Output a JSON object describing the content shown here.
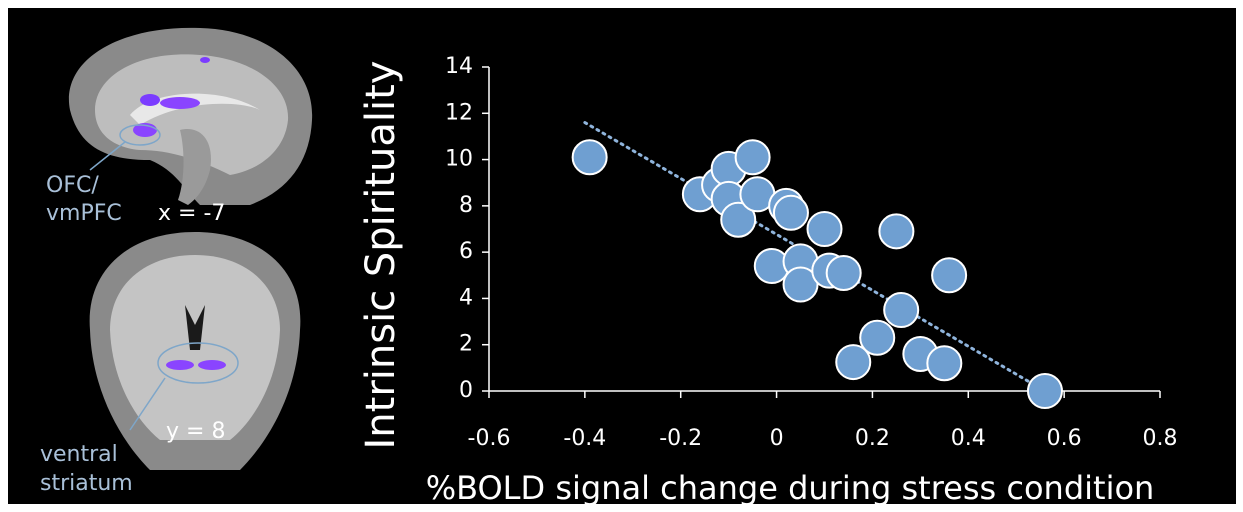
{
  "chart_data": {
    "type": "scatter",
    "ylabel": "Intrinsic Spirituality",
    "xlabel": "%BOLD signal change during stress condition",
    "series": [
      {
        "color": "#6f9fd1",
        "x": [
          -0.39,
          -0.16,
          -0.12,
          -0.1,
          -0.1,
          -0.08,
          -0.05,
          -0.04,
          0.02,
          0.03,
          0.1,
          0.25,
          0.36,
          -0.01,
          0.05,
          0.05,
          0.11,
          0.14,
          0.26,
          0.21,
          0.16,
          0.3,
          0.35,
          0.56
        ],
        "values": [
          10.1,
          8.5,
          8.9,
          9.6,
          8.3,
          7.4,
          10.1,
          8.5,
          8.0,
          7.7,
          7.0,
          6.9,
          5.0,
          5.4,
          5.6,
          4.6,
          5.2,
          5.1,
          3.5,
          2.3,
          1.25,
          1.6,
          1.2,
          0
        ]
      }
    ],
    "trendline": {
      "color": "#8fb4dc",
      "x": [
        -0.4,
        0.56
      ],
      "values": [
        11.6,
        0
      ]
    },
    "xlim": [
      -0.6,
      0.8
    ],
    "xticks": [
      -0.6,
      -0.4,
      -0.2,
      0,
      0.2,
      0.4,
      0.6,
      0.8
    ],
    "ylim": [
      0,
      14
    ],
    "yticks": [
      0,
      2,
      4,
      6,
      8,
      10,
      12,
      14
    ],
    "annotations": [
      "OFC/",
      "vmPFC",
      "x = -7",
      "ventral",
      "striatum",
      "y = 8"
    ]
  }
}
